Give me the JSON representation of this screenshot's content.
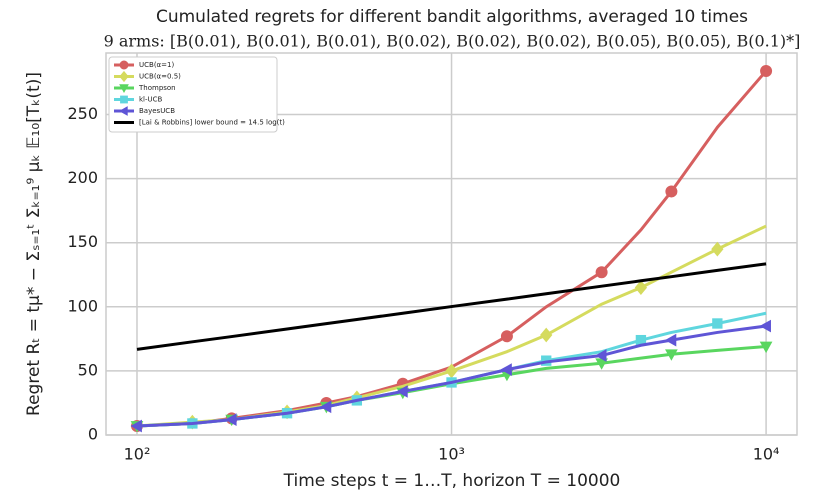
{
  "chart_data": {
    "type": "line",
    "title": "Cumulated regrets for different bandit algorithms, averaged 10 times",
    "subtitle": "9 arms: [B(0.01), B(0.01), B(0.01), B(0.02), B(0.02), B(0.02), B(0.05), B(0.05), B(0.1)*]",
    "x_label": "Time steps t = 1…T, horizon T = 10000",
    "y_label": "Regret Rₜ = tμ* − Σₛ₌₁ᵗ Σₖ₌₁⁹ μₖ 𝔼₁₀[Tₖ(t)]",
    "x": [
      100,
      150,
      200,
      300,
      400,
      500,
      700,
      1000,
      1500,
      2000,
      3000,
      4000,
      5000,
      7000,
      10000
    ],
    "series": [
      {
        "name": "UCB(α=1)",
        "color": "#d65f5f",
        "marker": "circle",
        "values": [
          7,
          9,
          13,
          19,
          25,
          30,
          40,
          53,
          77,
          100,
          127,
          160,
          190,
          240,
          284
        ]
      },
      {
        "name": "UCB(α=0.5)",
        "color": "#d5db5e",
        "marker": "diamond",
        "values": [
          7,
          10,
          12,
          18,
          23,
          29,
          38,
          50,
          65,
          78,
          102,
          115,
          127,
          145,
          163
        ]
      },
      {
        "name": "Thompson",
        "color": "#59d65f",
        "marker": "triangle-down",
        "values": [
          7,
          9,
          12,
          17,
          22,
          27,
          33,
          40,
          47,
          52,
          56,
          60,
          63,
          66,
          69
        ]
      },
      {
        "name": "kl-UCB",
        "color": "#5fd6de",
        "marker": "square",
        "values": [
          7,
          9,
          12,
          17,
          22,
          27,
          34,
          41,
          51,
          58,
          65,
          74,
          80,
          87,
          95
        ]
      },
      {
        "name": "BayesUCB",
        "color": "#5f55d6",
        "marker": "triangle-left",
        "values": [
          7,
          9,
          12,
          17,
          22,
          27,
          34,
          41,
          51,
          57,
          62,
          70,
          74,
          80,
          85
        ]
      },
      {
        "name": "[Lai & Robbins] lower bound = 14.5 log(t)",
        "color": "#000000",
        "marker": "none",
        "values": [
          66.8,
          72.7,
          76.8,
          82.7,
          86.9,
          90.1,
          95.0,
          100.2,
          106.0,
          110.2,
          116.1,
          120.3,
          123.5,
          128.4,
          133.5
        ]
      }
    ],
    "xscale": "log",
    "xlim": [
      79.7,
      12540
    ],
    "xticks": [
      {
        "value": 100,
        "label": "10²"
      },
      {
        "value": 1000,
        "label": "10³"
      },
      {
        "value": 10000,
        "label": "10⁴"
      }
    ],
    "ylim": [
      0,
      298
    ],
    "yticks": [
      0,
      50,
      100,
      150,
      200,
      250
    ],
    "grid": true,
    "legend": "upper left"
  }
}
